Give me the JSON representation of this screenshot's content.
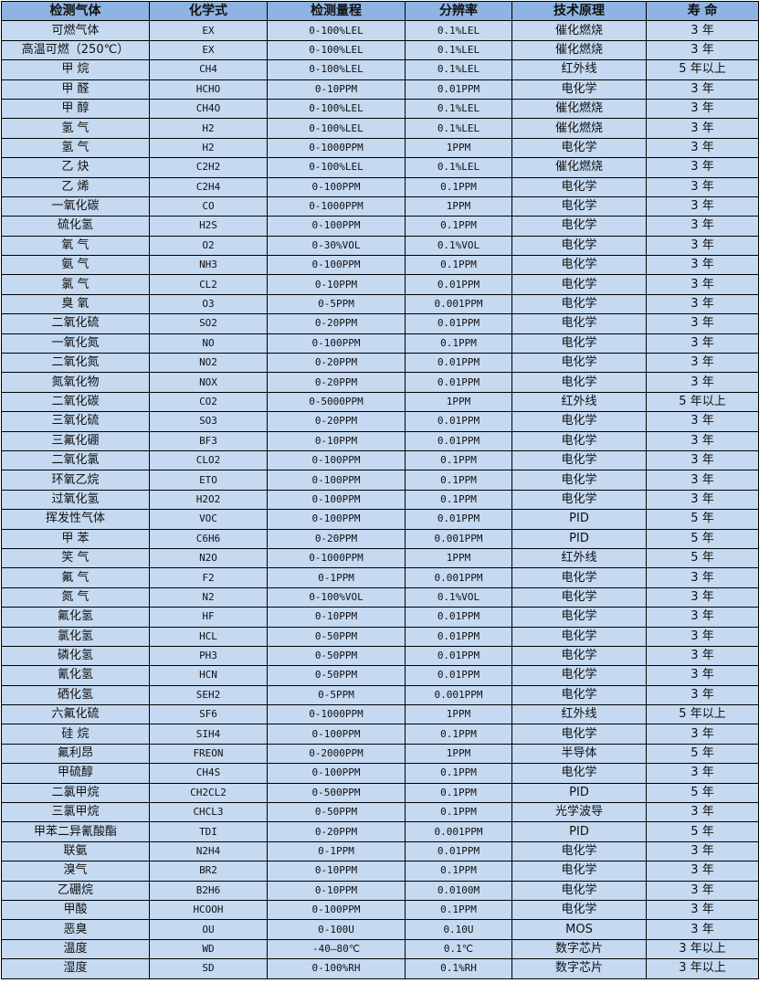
{
  "colors": {
    "header_bg": "#8db4e2",
    "row_bg": "#c5d9f1"
  },
  "table": {
    "headers": [
      "检测气体",
      "化学式",
      "检测量程",
      "分辨率",
      "技术原理",
      "寿 命"
    ],
    "rows": [
      [
        "可燃气体",
        "EX",
        "0-100%LEL",
        "0.1%LEL",
        "催化燃烧",
        "3 年"
      ],
      [
        "高温可燃（250℃）",
        "EX",
        "0-100%LEL",
        "0.1%LEL",
        "催化燃烧",
        "3 年"
      ],
      [
        "甲 烷",
        "CH4",
        "0-100%LEL",
        "0.1%LEL",
        "红外线",
        "5 年以上"
      ],
      [
        "甲 醛",
        "HCHO",
        "0-10PPM",
        "0.01PPM",
        "电化学",
        "3 年"
      ],
      [
        "甲 醇",
        "CH4O",
        "0-100%LEL",
        "0.1%LEL",
        "催化燃烧",
        "3 年"
      ],
      [
        "氢 气",
        "H2",
        "0-100%LEL",
        "0.1%LEL",
        "催化燃烧",
        "3 年"
      ],
      [
        "氢 气",
        "H2",
        "0-1000PPM",
        "1PPM",
        "电化学",
        "3 年"
      ],
      [
        "乙 炔",
        "C2H2",
        "0-100%LEL",
        "0.1%LEL",
        "催化燃烧",
        "3 年"
      ],
      [
        "乙 烯",
        "C2H4",
        "0-100PPM",
        "0.1PPM",
        "电化学",
        "3 年"
      ],
      [
        "一氧化碳",
        "CO",
        "0-1000PPM",
        "1PPM",
        "电化学",
        "3 年"
      ],
      [
        "硫化氢",
        "H2S",
        "0-100PPM",
        "0.1PPM",
        "电化学",
        "3 年"
      ],
      [
        "氧 气",
        "O2",
        "0-30%VOL",
        "0.1%VOL",
        "电化学",
        "3 年"
      ],
      [
        "氨 气",
        "NH3",
        "0-100PPM",
        "0.1PPM",
        "电化学",
        "3 年"
      ],
      [
        "氯 气",
        "CL2",
        "0-10PPM",
        "0.01PPM",
        "电化学",
        "3 年"
      ],
      [
        "臭 氧",
        "O3",
        "0-5PPM",
        "0.001PPM",
        "电化学",
        "3 年"
      ],
      [
        "二氧化硫",
        "SO2",
        "0-20PPM",
        "0.01PPM",
        "电化学",
        "3 年"
      ],
      [
        "一氧化氮",
        "NO",
        "0-100PPM",
        "0.1PPM",
        "电化学",
        "3 年"
      ],
      [
        "二氧化氮",
        "NO2",
        "0-20PPM",
        "0.01PPM",
        "电化学",
        "3 年"
      ],
      [
        "氮氧化物",
        "NOX",
        "0-20PPM",
        "0.01PPM",
        "电化学",
        "3 年"
      ],
      [
        "二氧化碳",
        "CO2",
        "0-5000PPM",
        "1PPM",
        "红外线",
        "5 年以上"
      ],
      [
        "三氧化硫",
        "SO3",
        "0-20PPM",
        "0.01PPM",
        "电化学",
        "3 年"
      ],
      [
        "三氟化硼",
        "BF3",
        "0-10PPM",
        "0.01PPM",
        "电化学",
        "3 年"
      ],
      [
        "二氧化氯",
        "CLO2",
        "0-100PPM",
        "0.1PPM",
        "电化学",
        "3 年"
      ],
      [
        "环氧乙烷",
        "ETO",
        "0-100PPM",
        "0.1PPM",
        "电化学",
        "3 年"
      ],
      [
        "过氧化氢",
        "H2O2",
        "0-100PPM",
        "0.1PPM",
        "电化学",
        "3 年"
      ],
      [
        "挥发性气体",
        "VOC",
        "0-100PPM",
        "0.01PPM",
        "PID",
        "5 年"
      ],
      [
        "甲 苯",
        "C6H6",
        "0-20PPM",
        "0.001PPM",
        "PID",
        "5 年"
      ],
      [
        "笑 气",
        "N2O",
        "0-1000PPM",
        "1PPM",
        "红外线",
        "5 年"
      ],
      [
        "氟 气",
        "F2",
        "0-1PPM",
        "0.001PPM",
        "电化学",
        "3 年"
      ],
      [
        "氮 气",
        "N2",
        "0-100%VOL",
        "0.1%VOL",
        "电化学",
        "3 年"
      ],
      [
        "氟化氢",
        "HF",
        "0-10PPM",
        "0.01PPM",
        "电化学",
        "3 年"
      ],
      [
        "氯化氢",
        "HCL",
        "0-50PPM",
        "0.01PPM",
        "电化学",
        "3 年"
      ],
      [
        "磷化氢",
        "PH3",
        "0-50PPM",
        "0.01PPM",
        "电化学",
        "3 年"
      ],
      [
        "氰化氢",
        "HCN",
        "0-50PPM",
        "0.01PPM",
        "电化学",
        "3 年"
      ],
      [
        "硒化氢",
        "SEH2",
        "0-5PPM",
        "0.001PPM",
        "电化学",
        "3 年"
      ],
      [
        "六氟化硫",
        "SF6",
        "0-1000PPM",
        "1PPM",
        "红外线",
        "5 年以上"
      ],
      [
        "硅 烷",
        "SIH4",
        "0-100PPM",
        "0.1PPM",
        "电化学",
        "3 年"
      ],
      [
        "氟利昂",
        "FREON",
        "0-2000PPM",
        "1PPM",
        "半导体",
        "5 年"
      ],
      [
        "甲硫醇",
        "CH4S",
        "0-100PPM",
        "0.1PPM",
        "电化学",
        "3 年"
      ],
      [
        "二氯甲烷",
        "CH2CL2",
        "0-500PPM",
        "0.1PPM",
        "PID",
        "5 年"
      ],
      [
        "三氯甲烷",
        "CHCL3",
        "0-50PPM",
        "0.1PPM",
        "光学波导",
        "3 年"
      ],
      [
        "甲苯二异氰酸酯",
        "TDI",
        "0-20PPM",
        "0.001PPM",
        "PID",
        "5 年"
      ],
      [
        "联氨",
        "N2H4",
        "0-1PPM",
        "0.01PPM",
        "电化学",
        "3 年"
      ],
      [
        "溴气",
        "BR2",
        "0-10PPM",
        "0.1PPM",
        "电化学",
        "3 年"
      ],
      [
        "乙硼烷",
        "B2H6",
        "0-10PPM",
        "0.0100M",
        "电化学",
        "3 年"
      ],
      [
        "甲酸",
        "HCOOH",
        "0-100PPM",
        "0.1PPM",
        "电化学",
        "3 年"
      ],
      [
        "恶臭",
        "OU",
        "0-100U",
        "0.10U",
        "MOS",
        "3 年"
      ],
      [
        "温度",
        "WD",
        "-40—80℃",
        "0.1℃",
        "数字芯片",
        "3 年以上"
      ],
      [
        "湿度",
        "SD",
        "0-100%RH",
        "0.1%RH",
        "数字芯片",
        "3 年以上"
      ]
    ]
  }
}
